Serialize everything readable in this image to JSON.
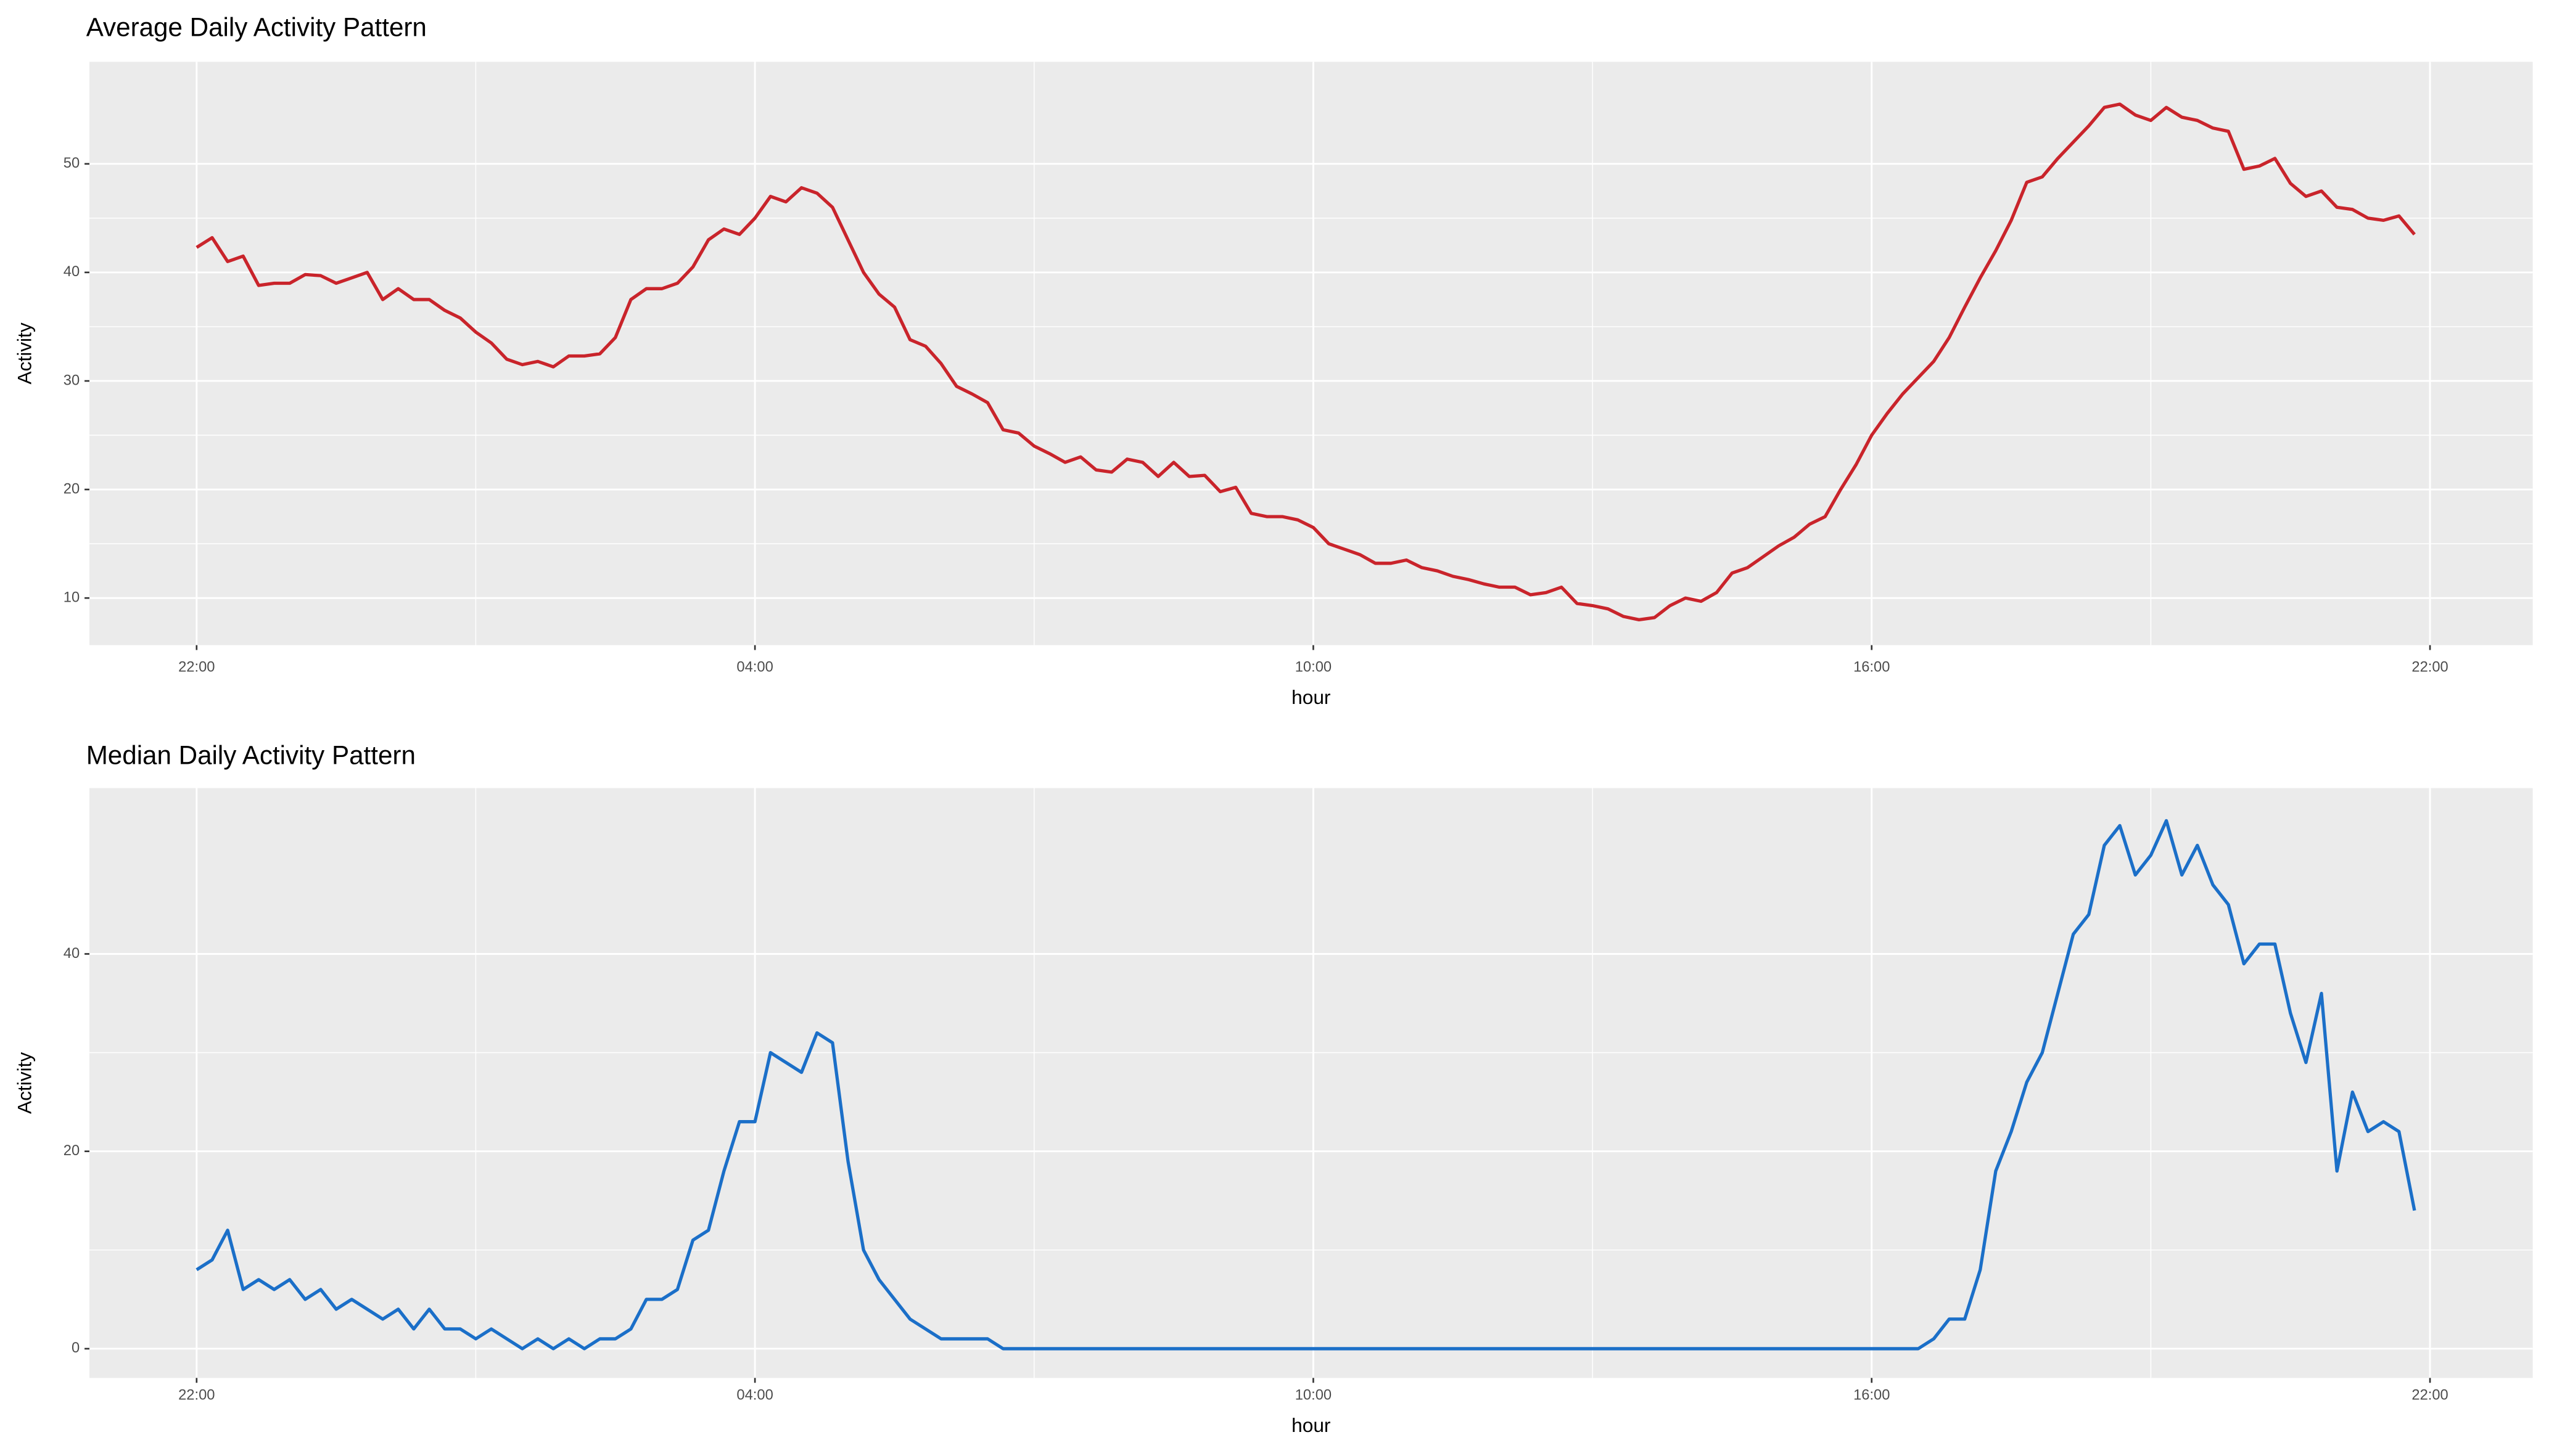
{
  "chart_data": [
    {
      "type": "line",
      "title": "Average Daily Activity Pattern",
      "x_label": "hour",
      "y_label": "Activity",
      "color": "#c9242b",
      "grid": true,
      "x": [
        "22:00",
        "22:10",
        "22:20",
        "22:30",
        "22:40",
        "22:50",
        "23:00",
        "23:10",
        "23:20",
        "23:30",
        "23:40",
        "23:50",
        "00:00",
        "00:10",
        "00:20",
        "00:30",
        "00:40",
        "00:50",
        "01:00",
        "01:10",
        "01:20",
        "01:30",
        "01:40",
        "01:50",
        "02:00",
        "02:10",
        "02:20",
        "02:30",
        "02:40",
        "02:50",
        "03:00",
        "03:10",
        "03:20",
        "03:30",
        "03:40",
        "03:50",
        "04:00",
        "04:10",
        "04:20",
        "04:30",
        "04:40",
        "04:50",
        "05:00",
        "05:10",
        "05:20",
        "05:30",
        "05:40",
        "05:50",
        "06:00",
        "06:10",
        "06:20",
        "06:30",
        "06:40",
        "06:50",
        "07:00",
        "07:10",
        "07:20",
        "07:30",
        "07:40",
        "07:50",
        "08:00",
        "08:10",
        "08:20",
        "08:30",
        "08:40",
        "08:50",
        "09:00",
        "09:10",
        "09:20",
        "09:30",
        "09:40",
        "09:50",
        "10:00",
        "10:10",
        "10:20",
        "10:30",
        "10:40",
        "10:50",
        "11:00",
        "11:10",
        "11:20",
        "11:30",
        "11:40",
        "11:50",
        "12:00",
        "12:10",
        "12:20",
        "12:30",
        "12:40",
        "12:50",
        "13:00",
        "13:10",
        "13:20",
        "13:30",
        "13:40",
        "13:50",
        "14:00",
        "14:10",
        "14:20",
        "14:30",
        "14:40",
        "14:50",
        "15:00",
        "15:10",
        "15:20",
        "15:30",
        "15:40",
        "15:50",
        "16:00",
        "16:10",
        "16:20",
        "16:30",
        "16:40",
        "16:50",
        "17:00",
        "17:10",
        "17:20",
        "17:30",
        "17:40",
        "17:50",
        "18:00",
        "18:10",
        "18:20",
        "18:30",
        "18:40",
        "18:50",
        "19:00",
        "19:10",
        "19:20",
        "19:30",
        "19:40",
        "19:50",
        "20:00",
        "20:10",
        "20:20",
        "20:30",
        "20:40",
        "20:50",
        "21:00",
        "21:10",
        "21:20",
        "21:30",
        "21:40",
        "21:50"
      ],
      "values": [
        42.3,
        43.2,
        41,
        41.5,
        38.8,
        39,
        39,
        39.8,
        39.7,
        39,
        39.5,
        40,
        37.5,
        38.5,
        37.5,
        37.5,
        36.5,
        35.8,
        34.5,
        33.5,
        32,
        31.5,
        31.8,
        31.3,
        32.3,
        32.3,
        32.5,
        34,
        37.5,
        38.5,
        38.5,
        39,
        40.5,
        43,
        44,
        43.5,
        45,
        47,
        46.5,
        47.8,
        47.3,
        46,
        43,
        40,
        38,
        36.8,
        33.8,
        33.2,
        31.6,
        29.5,
        28.8,
        28,
        25.5,
        25.2,
        24,
        23.3,
        22.5,
        23,
        21.8,
        21.6,
        22.8,
        22.5,
        21.2,
        22.5,
        21.2,
        21.3,
        19.8,
        20.2,
        17.8,
        17.5,
        17.5,
        17.2,
        16.5,
        15,
        14.5,
        14,
        13.2,
        13.2,
        13.5,
        12.8,
        12.5,
        12,
        11.7,
        11.3,
        11,
        11,
        10.3,
        10.5,
        11,
        9.5,
        9.3,
        9,
        8.3,
        8,
        8.2,
        9.3,
        10,
        9.7,
        10.5,
        12.3,
        12.8,
        13.8,
        14.8,
        15.6,
        16.8,
        17.5,
        20,
        22.3,
        25,
        27,
        28.8,
        30.3,
        31.8,
        34,
        36.8,
        39.5,
        42,
        44.8,
        48.3,
        48.8,
        50.5,
        52,
        53.5,
        55.2,
        55.5,
        54.5,
        54,
        55.2,
        54.3,
        54,
        53.3,
        53,
        49.5,
        49.8,
        50.5,
        48.2,
        47,
        47.5,
        46,
        45.8,
        45,
        44.8,
        45.2,
        43.5
      ],
      "xticks": [
        "22:00",
        "04:00",
        "10:00",
        "16:00",
        "22:00"
      ],
      "ylim": [
        5.66,
        59.4
      ],
      "yticks": [
        10,
        20,
        30,
        40,
        50
      ]
    },
    {
      "type": "line",
      "title": "Median Daily Activity Pattern",
      "x_label": "hour",
      "y_label": "Activity",
      "color": "#1b6fc8",
      "grid": true,
      "x": [
        "22:00",
        "22:10",
        "22:20",
        "22:30",
        "22:40",
        "22:50",
        "23:00",
        "23:10",
        "23:20",
        "23:30",
        "23:40",
        "23:50",
        "00:00",
        "00:10",
        "00:20",
        "00:30",
        "00:40",
        "00:50",
        "01:00",
        "01:10",
        "01:20",
        "01:30",
        "01:40",
        "01:50",
        "02:00",
        "02:10",
        "02:20",
        "02:30",
        "02:40",
        "02:50",
        "03:00",
        "03:10",
        "03:20",
        "03:30",
        "03:40",
        "03:50",
        "04:00",
        "04:10",
        "04:20",
        "04:30",
        "04:40",
        "04:50",
        "05:00",
        "05:10",
        "05:20",
        "05:30",
        "05:40",
        "05:50",
        "06:00",
        "06:10",
        "06:20",
        "06:30",
        "06:40",
        "06:50",
        "07:00",
        "07:10",
        "07:20",
        "07:30",
        "07:40",
        "07:50",
        "08:00",
        "08:10",
        "08:20",
        "08:30",
        "08:40",
        "08:50",
        "09:00",
        "09:10",
        "09:20",
        "09:30",
        "09:40",
        "09:50",
        "10:00",
        "10:10",
        "10:20",
        "10:30",
        "10:40",
        "10:50",
        "11:00",
        "11:10",
        "11:20",
        "11:30",
        "11:40",
        "11:50",
        "12:00",
        "12:10",
        "12:20",
        "12:30",
        "12:40",
        "12:50",
        "13:00",
        "13:10",
        "13:20",
        "13:30",
        "13:40",
        "13:50",
        "14:00",
        "14:10",
        "14:20",
        "14:30",
        "14:40",
        "14:50",
        "15:00",
        "15:10",
        "15:20",
        "15:30",
        "15:40",
        "15:50",
        "16:00",
        "16:10",
        "16:20",
        "16:30",
        "16:40",
        "16:50",
        "17:00",
        "17:10",
        "17:20",
        "17:30",
        "17:40",
        "17:50",
        "18:00",
        "18:10",
        "18:20",
        "18:30",
        "18:40",
        "18:50",
        "19:00",
        "19:10",
        "19:20",
        "19:30",
        "19:40",
        "19:50",
        "20:00",
        "20:10",
        "20:20",
        "20:30",
        "20:40",
        "20:50",
        "21:00",
        "21:10",
        "21:20",
        "21:30",
        "21:40",
        "21:50"
      ],
      "values": [
        8,
        9,
        12,
        6,
        7,
        6,
        7,
        5,
        6,
        4,
        5,
        4,
        3,
        4,
        2,
        4,
        2,
        2,
        1,
        2,
        1,
        0,
        1,
        0,
        1,
        0,
        1,
        1,
        2,
        5,
        5,
        6,
        11,
        12,
        18,
        23,
        23,
        30,
        29,
        28,
        32,
        31,
        19,
        10,
        7,
        5,
        3,
        2,
        1,
        1,
        1,
        1,
        0,
        0,
        0,
        0,
        0,
        0,
        0,
        0,
        0,
        0,
        0,
        0,
        0,
        0,
        0,
        0,
        0,
        0,
        0,
        0,
        0,
        0,
        0,
        0,
        0,
        0,
        0,
        0,
        0,
        0,
        0,
        0,
        0,
        0,
        0,
        0,
        0,
        0,
        0,
        0,
        0,
        0,
        0,
        0,
        0,
        0,
        0,
        0,
        0,
        0,
        0,
        0,
        0,
        0,
        0,
        0,
        0,
        0,
        0,
        0,
        1,
        3,
        3,
        8,
        18,
        22,
        27,
        30,
        36,
        42,
        44,
        51,
        53,
        48,
        50,
        53.5,
        48,
        51,
        47,
        45,
        39,
        41,
        41,
        34,
        29,
        36,
        18,
        26,
        22,
        23,
        22,
        14
      ],
      "xticks": [
        "22:00",
        "04:00",
        "10:00",
        "16:00",
        "22:00"
      ],
      "ylim": [
        -2.96,
        56.8
      ],
      "yticks": [
        0,
        20,
        40
      ]
    }
  ]
}
